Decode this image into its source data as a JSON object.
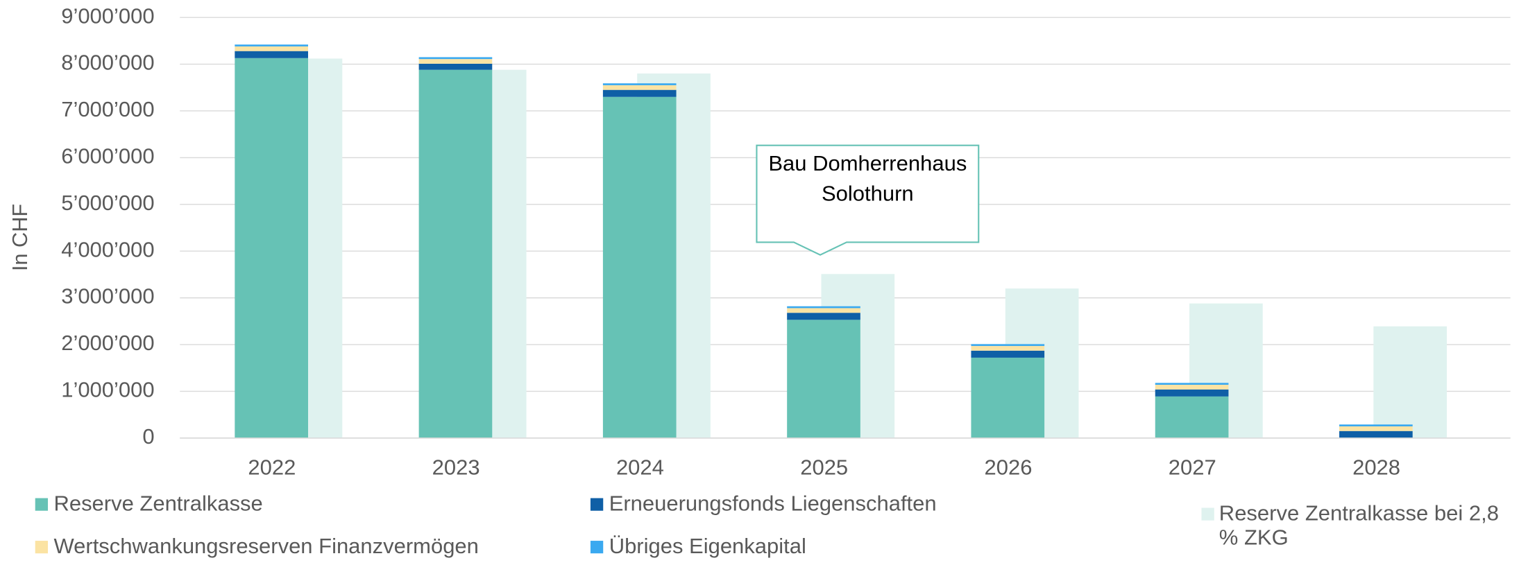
{
  "chart_data": {
    "type": "bar",
    "y_label": "In CHF",
    "categories": [
      "2022",
      "2023",
      "2024",
      "2025",
      "2026",
      "2027",
      "2028"
    ],
    "series": [
      {
        "name": "Reserve Zentralkasse",
        "color": "#66c2b5",
        "values": [
          8130000,
          7880000,
          7300000,
          2530000,
          1720000,
          890000,
          0
        ]
      },
      {
        "name": "Erneuerungsfonds Liegenschaften",
        "color": "#0f5fa6",
        "values": [
          150000,
          130000,
          150000,
          150000,
          150000,
          150000,
          150000
        ]
      },
      {
        "name": "Wertschwankungsreserven Finanzvermögen",
        "color": "#fbe3a3",
        "values": [
          100000,
          100000,
          100000,
          100000,
          100000,
          100000,
          100000
        ]
      },
      {
        "name": "Übriges Eigenkapital",
        "color": "#3aa9f0",
        "values": [
          40000,
          40000,
          40000,
          40000,
          40000,
          40000,
          40000
        ]
      },
      {
        "name": "Reserve Zentralkasse bei 2,8 % ZKG",
        "color": "#dff2ef",
        "stack": false,
        "values": [
          8120000,
          7880000,
          7800000,
          3510000,
          3200000,
          2880000,
          2390000
        ]
      }
    ],
    "ylim": [
      0,
      9000000
    ],
    "yticks": [
      0,
      {
        "value": 1000000,
        "label": "1’000’000"
      },
      {
        "value": 2000000,
        "label": "2’000’000"
      },
      {
        "value": 3000000,
        "label": "3’000’000"
      },
      {
        "value": 4000000,
        "label": "4’000’000"
      },
      {
        "value": 5000000,
        "label": "5’000’000"
      },
      {
        "value": 6000000,
        "label": "6’000’000"
      },
      {
        "value": 7000000,
        "label": "7’000’000"
      },
      {
        "value": 8000000,
        "label": "8’000’000"
      },
      {
        "value": 9000000,
        "label": "9’000’000"
      }
    ],
    "grid": true,
    "annotation": "Bau Domherrenhaus Solothurn"
  }
}
